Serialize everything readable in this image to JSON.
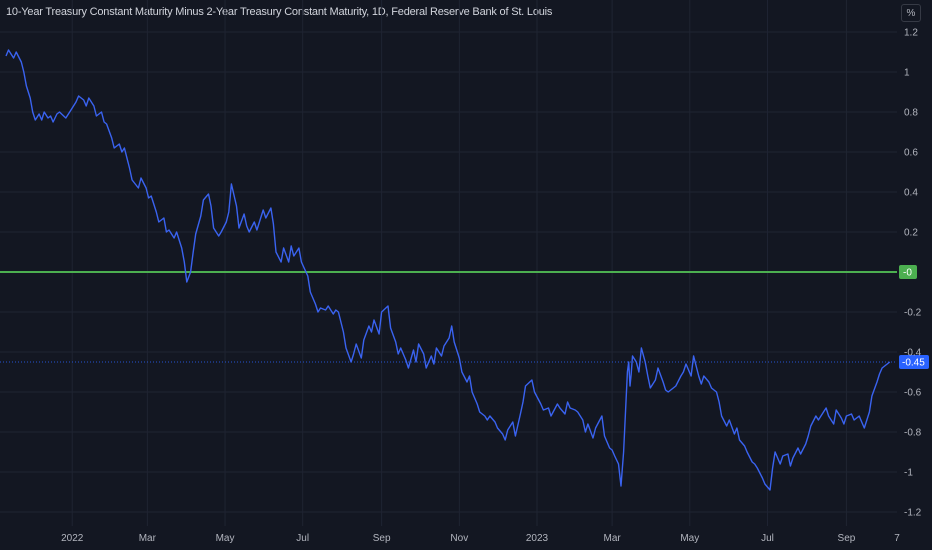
{
  "title": "10-Year Treasury Constant Maturity Minus 2-Year Treasury Constant Maturity, 1D, Federal Reserve Bank of St. Louis",
  "unit_button": "%",
  "colors": {
    "background": "#131722",
    "grid": "#1f2432",
    "series": "#2962ff",
    "series_line": "#3a63f0",
    "zero_line": "#4caf50",
    "last_badge": "#2962ff",
    "zero_badge": "#4caf50",
    "text": "#b2b5be"
  },
  "chart_data": {
    "type": "line",
    "y_ticks": [
      {
        "value": 1.2,
        "label": "1.2"
      },
      {
        "value": 1.0,
        "label": "1"
      },
      {
        "value": 0.8,
        "label": "0.8"
      },
      {
        "value": 0.6,
        "label": "0.6"
      },
      {
        "value": 0.4,
        "label": "0.4"
      },
      {
        "value": 0.2,
        "label": "0.2"
      },
      {
        "value": -0.2,
        "label": "-0.2"
      },
      {
        "value": -0.4,
        "label": "-0.4"
      },
      {
        "value": -0.6,
        "label": "-0.6"
      },
      {
        "value": -0.8,
        "label": "-0.8"
      },
      {
        "value": -1.0,
        "label": "-1"
      },
      {
        "value": -1.2,
        "label": "-1.2"
      }
    ],
    "x_ticks": [
      {
        "value": "2022-01-01",
        "label": "2022"
      },
      {
        "value": "2022-03-01",
        "label": "Mar"
      },
      {
        "value": "2022-05-01",
        "label": "May"
      },
      {
        "value": "2022-07-01",
        "label": "Jul"
      },
      {
        "value": "2022-09-01",
        "label": "Sep"
      },
      {
        "value": "2022-11-01",
        "label": "Nov"
      },
      {
        "value": "2023-01-01",
        "label": "2023"
      },
      {
        "value": "2023-03-01",
        "label": "Mar"
      },
      {
        "value": "2023-05-01",
        "label": "May"
      },
      {
        "value": "2023-07-01",
        "label": "Jul"
      },
      {
        "value": "2023-09-01",
        "label": "Sep"
      },
      {
        "value": "2023-11-01",
        "label": "7"
      }
    ],
    "ylim": [
      -1.25,
      1.22
    ],
    "xlim": [
      "2021-11-10",
      "2023-10-06"
    ],
    "zero_line": {
      "value": 0,
      "label": "-0"
    },
    "last_value": {
      "value": -0.45,
      "label": "-0.45"
    },
    "grid": true,
    "series": [
      {
        "points": [
          [
            "2021-11-10",
            1.08
          ],
          [
            "2021-11-12",
            1.11
          ],
          [
            "2021-11-16",
            1.07
          ],
          [
            "2021-11-18",
            1.1
          ],
          [
            "2021-11-22",
            1.05
          ],
          [
            "2021-11-24",
            1.0
          ],
          [
            "2021-11-26",
            0.93
          ],
          [
            "2021-11-29",
            0.87
          ],
          [
            "2021-12-01",
            0.8
          ],
          [
            "2021-12-03",
            0.76
          ],
          [
            "2021-12-06",
            0.79
          ],
          [
            "2021-12-08",
            0.76
          ],
          [
            "2021-12-10",
            0.8
          ],
          [
            "2021-12-13",
            0.77
          ],
          [
            "2021-12-15",
            0.78
          ],
          [
            "2021-12-17",
            0.75
          ],
          [
            "2021-12-20",
            0.79
          ],
          [
            "2021-12-22",
            0.8
          ],
          [
            "2021-12-27",
            0.77
          ],
          [
            "2021-12-30",
            0.8
          ],
          [
            "2022-01-04",
            0.85
          ],
          [
            "2022-01-06",
            0.88
          ],
          [
            "2022-01-10",
            0.86
          ],
          [
            "2022-01-12",
            0.83
          ],
          [
            "2022-01-14",
            0.87
          ],
          [
            "2022-01-18",
            0.83
          ],
          [
            "2022-01-20",
            0.78
          ],
          [
            "2022-01-24",
            0.8
          ],
          [
            "2022-01-26",
            0.75
          ],
          [
            "2022-01-28",
            0.74
          ],
          [
            "2022-02-01",
            0.67
          ],
          [
            "2022-02-03",
            0.62
          ],
          [
            "2022-02-07",
            0.64
          ],
          [
            "2022-02-09",
            0.6
          ],
          [
            "2022-02-11",
            0.62
          ],
          [
            "2022-02-15",
            0.52
          ],
          [
            "2022-02-17",
            0.46
          ],
          [
            "2022-02-22",
            0.42
          ],
          [
            "2022-02-24",
            0.47
          ],
          [
            "2022-02-28",
            0.42
          ],
          [
            "2022-03-02",
            0.37
          ],
          [
            "2022-03-04",
            0.38
          ],
          [
            "2022-03-08",
            0.3
          ],
          [
            "2022-03-10",
            0.25
          ],
          [
            "2022-03-14",
            0.27
          ],
          [
            "2022-03-16",
            0.2
          ],
          [
            "2022-03-18",
            0.21
          ],
          [
            "2022-03-22",
            0.17
          ],
          [
            "2022-03-24",
            0.2
          ],
          [
            "2022-03-28",
            0.12
          ],
          [
            "2022-03-30",
            0.05
          ],
          [
            "2022-04-01",
            -0.05
          ],
          [
            "2022-04-04",
            0.0
          ],
          [
            "2022-04-06",
            0.1
          ],
          [
            "2022-04-08",
            0.19
          ],
          [
            "2022-04-12",
            0.28
          ],
          [
            "2022-04-14",
            0.36
          ],
          [
            "2022-04-18",
            0.39
          ],
          [
            "2022-04-20",
            0.33
          ],
          [
            "2022-04-22",
            0.22
          ],
          [
            "2022-04-26",
            0.18
          ],
          [
            "2022-04-28",
            0.2
          ],
          [
            "2022-05-02",
            0.25
          ],
          [
            "2022-05-04",
            0.3
          ],
          [
            "2022-05-06",
            0.44
          ],
          [
            "2022-05-10",
            0.33
          ],
          [
            "2022-05-12",
            0.22
          ],
          [
            "2022-05-16",
            0.29
          ],
          [
            "2022-05-18",
            0.23
          ],
          [
            "2022-05-20",
            0.2
          ],
          [
            "2022-05-24",
            0.25
          ],
          [
            "2022-05-26",
            0.21
          ],
          [
            "2022-05-31",
            0.31
          ],
          [
            "2022-06-02",
            0.27
          ],
          [
            "2022-06-06",
            0.32
          ],
          [
            "2022-06-08",
            0.24
          ],
          [
            "2022-06-10",
            0.1
          ],
          [
            "2022-06-14",
            0.05
          ],
          [
            "2022-06-16",
            0.12
          ],
          [
            "2022-06-20",
            0.05
          ],
          [
            "2022-06-22",
            0.13
          ],
          [
            "2022-06-24",
            0.08
          ],
          [
            "2022-06-28",
            0.12
          ],
          [
            "2022-06-30",
            0.05
          ],
          [
            "2022-07-05",
            -0.02
          ],
          [
            "2022-07-07",
            -0.1
          ],
          [
            "2022-07-11",
            -0.16
          ],
          [
            "2022-07-13",
            -0.2
          ],
          [
            "2022-07-15",
            -0.18
          ],
          [
            "2022-07-19",
            -0.19
          ],
          [
            "2022-07-21",
            -0.17
          ],
          [
            "2022-07-25",
            -0.21
          ],
          [
            "2022-07-27",
            -0.19
          ],
          [
            "2022-07-29",
            -0.2
          ],
          [
            "2022-08-02",
            -0.3
          ],
          [
            "2022-08-04",
            -0.38
          ],
          [
            "2022-08-08",
            -0.45
          ],
          [
            "2022-08-10",
            -0.41
          ],
          [
            "2022-08-12",
            -0.36
          ],
          [
            "2022-08-16",
            -0.43
          ],
          [
            "2022-08-18",
            -0.34
          ],
          [
            "2022-08-22",
            -0.27
          ],
          [
            "2022-08-24",
            -0.3
          ],
          [
            "2022-08-26",
            -0.24
          ],
          [
            "2022-08-30",
            -0.31
          ],
          [
            "2022-09-01",
            -0.2
          ],
          [
            "2022-09-06",
            -0.17
          ],
          [
            "2022-09-08",
            -0.28
          ],
          [
            "2022-09-12",
            -0.35
          ],
          [
            "2022-09-14",
            -0.41
          ],
          [
            "2022-09-16",
            -0.38
          ],
          [
            "2022-09-20",
            -0.44
          ],
          [
            "2022-09-22",
            -0.48
          ],
          [
            "2022-09-26",
            -0.39
          ],
          [
            "2022-09-28",
            -0.45
          ],
          [
            "2022-09-30",
            -0.36
          ],
          [
            "2022-10-04",
            -0.41
          ],
          [
            "2022-10-06",
            -0.48
          ],
          [
            "2022-10-10",
            -0.42
          ],
          [
            "2022-10-12",
            -0.46
          ],
          [
            "2022-10-14",
            -0.38
          ],
          [
            "2022-10-18",
            -0.42
          ],
          [
            "2022-10-20",
            -0.37
          ],
          [
            "2022-10-24",
            -0.33
          ],
          [
            "2022-10-26",
            -0.27
          ],
          [
            "2022-10-28",
            -0.35
          ],
          [
            "2022-11-01",
            -0.43
          ],
          [
            "2022-11-03",
            -0.5
          ],
          [
            "2022-11-07",
            -0.55
          ],
          [
            "2022-11-09",
            -0.52
          ],
          [
            "2022-11-11",
            -0.6
          ],
          [
            "2022-11-15",
            -0.66
          ],
          [
            "2022-11-17",
            -0.7
          ],
          [
            "2022-11-21",
            -0.72
          ],
          [
            "2022-11-23",
            -0.74
          ],
          [
            "2022-11-25",
            -0.72
          ],
          [
            "2022-11-29",
            -0.75
          ],
          [
            "2022-12-01",
            -0.78
          ],
          [
            "2022-12-05",
            -0.81
          ],
          [
            "2022-12-07",
            -0.84
          ],
          [
            "2022-12-09",
            -0.79
          ],
          [
            "2022-12-13",
            -0.75
          ],
          [
            "2022-12-15",
            -0.82
          ],
          [
            "2022-12-19",
            -0.71
          ],
          [
            "2022-12-21",
            -0.65
          ],
          [
            "2022-12-23",
            -0.57
          ],
          [
            "2022-12-28",
            -0.54
          ],
          [
            "2022-12-30",
            -0.6
          ],
          [
            "2023-01-04",
            -0.66
          ],
          [
            "2023-01-06",
            -0.69
          ],
          [
            "2023-01-10",
            -0.68
          ],
          [
            "2023-01-12",
            -0.72
          ],
          [
            "2023-01-17",
            -0.66
          ],
          [
            "2023-01-19",
            -0.68
          ],
          [
            "2023-01-23",
            -0.71
          ],
          [
            "2023-01-25",
            -0.65
          ],
          [
            "2023-01-27",
            -0.68
          ],
          [
            "2023-01-31",
            -0.69
          ],
          [
            "2023-02-02",
            -0.7
          ],
          [
            "2023-02-06",
            -0.74
          ],
          [
            "2023-02-08",
            -0.8
          ],
          [
            "2023-02-10",
            -0.76
          ],
          [
            "2023-02-14",
            -0.83
          ],
          [
            "2023-02-16",
            -0.78
          ],
          [
            "2023-02-21",
            -0.72
          ],
          [
            "2023-02-23",
            -0.82
          ],
          [
            "2023-02-27",
            -0.88
          ],
          [
            "2023-03-01",
            -0.89
          ],
          [
            "2023-03-03",
            -0.92
          ],
          [
            "2023-03-06",
            -0.96
          ],
          [
            "2023-03-08",
            -1.07
          ],
          [
            "2023-03-10",
            -0.9
          ],
          [
            "2023-03-13",
            -0.5
          ],
          [
            "2023-03-14",
            -0.45
          ],
          [
            "2023-03-15",
            -0.57
          ],
          [
            "2023-03-16",
            -0.51
          ],
          [
            "2023-03-17",
            -0.42
          ],
          [
            "2023-03-20",
            -0.45
          ],
          [
            "2023-03-22",
            -0.5
          ],
          [
            "2023-03-24",
            -0.38
          ],
          [
            "2023-03-27",
            -0.45
          ],
          [
            "2023-03-29",
            -0.52
          ],
          [
            "2023-03-31",
            -0.58
          ],
          [
            "2023-04-04",
            -0.54
          ],
          [
            "2023-04-06",
            -0.48
          ],
          [
            "2023-04-10",
            -0.55
          ],
          [
            "2023-04-12",
            -0.59
          ],
          [
            "2023-04-14",
            -0.6
          ],
          [
            "2023-04-18",
            -0.58
          ],
          [
            "2023-04-20",
            -0.57
          ],
          [
            "2023-04-24",
            -0.52
          ],
          [
            "2023-04-26",
            -0.5
          ],
          [
            "2023-04-28",
            -0.46
          ],
          [
            "2023-05-02",
            -0.52
          ],
          [
            "2023-05-04",
            -0.42
          ],
          [
            "2023-05-08",
            -0.52
          ],
          [
            "2023-05-10",
            -0.56
          ],
          [
            "2023-05-12",
            -0.52
          ],
          [
            "2023-05-16",
            -0.55
          ],
          [
            "2023-05-18",
            -0.58
          ],
          [
            "2023-05-22",
            -0.6
          ],
          [
            "2023-05-24",
            -0.65
          ],
          [
            "2023-05-26",
            -0.72
          ],
          [
            "2023-05-30",
            -0.77
          ],
          [
            "2023-06-01",
            -0.74
          ],
          [
            "2023-06-05",
            -0.81
          ],
          [
            "2023-06-07",
            -0.78
          ],
          [
            "2023-06-09",
            -0.84
          ],
          [
            "2023-06-13",
            -0.87
          ],
          [
            "2023-06-15",
            -0.9
          ],
          [
            "2023-06-19",
            -0.95
          ],
          [
            "2023-06-21",
            -0.96
          ],
          [
            "2023-06-23",
            -0.98
          ],
          [
            "2023-06-27",
            -1.03
          ],
          [
            "2023-06-29",
            -1.06
          ],
          [
            "2023-07-03",
            -1.09
          ],
          [
            "2023-07-05",
            -0.98
          ],
          [
            "2023-07-07",
            -0.9
          ],
          [
            "2023-07-11",
            -0.96
          ],
          [
            "2023-07-13",
            -0.92
          ],
          [
            "2023-07-17",
            -0.91
          ],
          [
            "2023-07-19",
            -0.97
          ],
          [
            "2023-07-21",
            -0.93
          ],
          [
            "2023-07-25",
            -0.88
          ],
          [
            "2023-07-27",
            -0.91
          ],
          [
            "2023-07-31",
            -0.86
          ],
          [
            "2023-08-02",
            -0.82
          ],
          [
            "2023-08-04",
            -0.77
          ],
          [
            "2023-08-08",
            -0.72
          ],
          [
            "2023-08-10",
            -0.74
          ],
          [
            "2023-08-14",
            -0.7
          ],
          [
            "2023-08-16",
            -0.68
          ],
          [
            "2023-08-18",
            -0.72
          ],
          [
            "2023-08-22",
            -0.76
          ],
          [
            "2023-08-24",
            -0.69
          ],
          [
            "2023-08-28",
            -0.73
          ],
          [
            "2023-08-30",
            -0.76
          ],
          [
            "2023-09-01",
            -0.72
          ],
          [
            "2023-09-05",
            -0.71
          ],
          [
            "2023-09-07",
            -0.74
          ],
          [
            "2023-09-11",
            -0.72
          ],
          [
            "2023-09-13",
            -0.75
          ],
          [
            "2023-09-15",
            -0.78
          ],
          [
            "2023-09-19",
            -0.7
          ],
          [
            "2023-09-21",
            -0.62
          ],
          [
            "2023-09-25",
            -0.55
          ],
          [
            "2023-09-27",
            -0.51
          ],
          [
            "2023-09-29",
            -0.48
          ],
          [
            "2023-10-03",
            -0.46
          ],
          [
            "2023-10-05",
            -0.45
          ]
        ]
      }
    ]
  }
}
